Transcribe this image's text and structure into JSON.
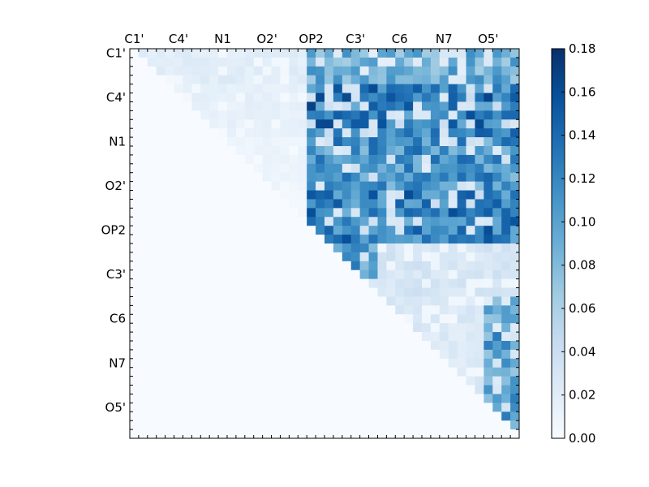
{
  "chart_data": {
    "type": "heatmap",
    "title": "",
    "xlabel": "",
    "ylabel": "",
    "n": 44,
    "upper_triangular": true,
    "tick_positions": [
      0,
      5,
      10,
      15,
      20,
      25,
      30,
      35,
      40
    ],
    "x_tick_labels": [
      "C1'",
      "C4'",
      "N1",
      "O2'",
      "OP2",
      "C3'",
      "C6",
      "N7",
      "O5'"
    ],
    "y_tick_labels": [
      "C1'",
      "C4'",
      "N1",
      "O2'",
      "OP2",
      "C3'",
      "C6",
      "N7",
      "O5'"
    ],
    "colormap": "Blues",
    "colorbar": {
      "min": 0.0,
      "max": 0.18,
      "ticks": [
        "0.00",
        "0.02",
        "0.04",
        "0.06",
        "0.08",
        "0.10",
        "0.12",
        "0.14",
        "0.16",
        "0.18"
      ]
    },
    "region_values": [
      {
        "rows": [
          0,
          3
        ],
        "cols": [
          0,
          19
        ],
        "value": 0.02
      },
      {
        "rows": [
          0,
          3
        ],
        "cols": [
          20,
          43
        ],
        "value": 0.09
      },
      {
        "rows": [
          4,
          9
        ],
        "cols": [
          0,
          19
        ],
        "value": 0.015
      },
      {
        "rows": [
          4,
          9
        ],
        "cols": [
          20,
          43
        ],
        "value": 0.13
      },
      {
        "rows": [
          10,
          15
        ],
        "cols": [
          0,
          19
        ],
        "value": 0.01
      },
      {
        "rows": [
          10,
          15
        ],
        "cols": [
          20,
          43
        ],
        "value": 0.11
      },
      {
        "rows": [
          16,
          21
        ],
        "cols": [
          0,
          19
        ],
        "value": 0.005
      },
      {
        "rows": [
          16,
          21
        ],
        "cols": [
          20,
          43
        ],
        "value": 0.125
      },
      {
        "rows": [
          22,
          27
        ],
        "cols": [
          20,
          43
        ],
        "value": 0.1
      },
      {
        "rows": [
          22,
          27
        ],
        "cols": [
          28,
          43
        ],
        "value": 0.03
      },
      {
        "rows": [
          28,
          43
        ],
        "cols": [
          28,
          43
        ],
        "value": 0.025
      },
      {
        "rows": [
          28,
          43
        ],
        "cols": [
          40,
          43
        ],
        "value": 0.1
      }
    ]
  }
}
